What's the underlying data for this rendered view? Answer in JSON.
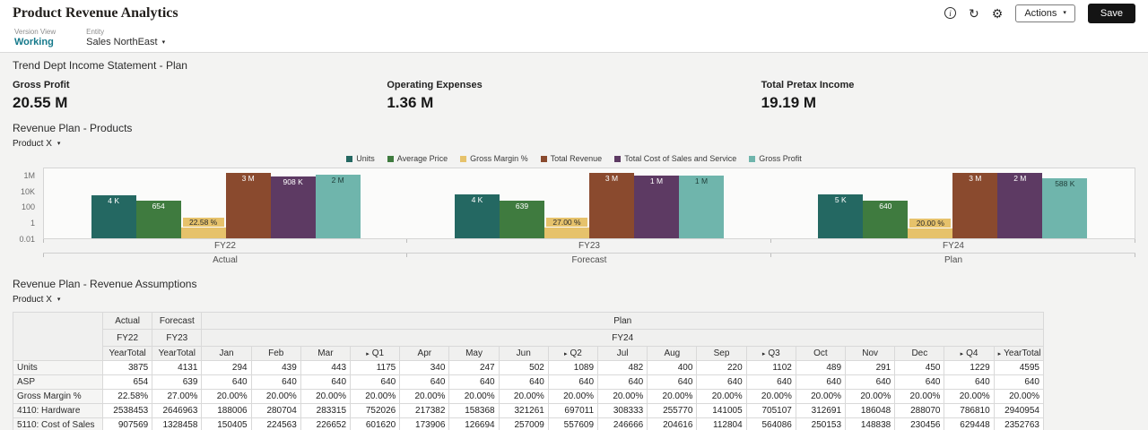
{
  "header": {
    "title": "Product Revenue Analytics",
    "actions_label": "Actions",
    "save_label": "Save",
    "icons": [
      {
        "name": "info-icon",
        "glyph": "i"
      },
      {
        "name": "refresh-icon",
        "glyph": "↻"
      },
      {
        "name": "settings-gear-icon",
        "glyph": "⚙"
      }
    ]
  },
  "glyphs": {
    "caret": "▾",
    "expand_triangle": "▸"
  },
  "context": {
    "version_label": "Version View",
    "version_value": "Working",
    "entity_label": "Entity",
    "entity_value": "Sales NorthEast"
  },
  "kpi_section": {
    "title": "Trend Dept Income Statement - Plan",
    "tiles": [
      {
        "label": "Gross Profit",
        "value": "20.55 M"
      },
      {
        "label": "Operating Expenses",
        "value": "1.36 M"
      },
      {
        "label": "Total Pretax Income",
        "value": "19.19 M"
      }
    ]
  },
  "chart_section": {
    "title": "Revenue Plan - Products",
    "filter_label": "Product X"
  },
  "chart_data": {
    "type": "bar",
    "y_scale": "log",
    "legend_position": "top",
    "y_range": [
      0.01,
      10000000
    ],
    "y_ticks": [
      {
        "label": "1M",
        "value": 1000000
      },
      {
        "label": "10K",
        "value": 10000
      },
      {
        "label": "100",
        "value": 100
      },
      {
        "label": "1",
        "value": 1
      },
      {
        "label": "0.01",
        "value": 0.01
      }
    ],
    "categories": [
      "FY22",
      "FY23",
      "FY24"
    ],
    "category_sublabels": [
      "Actual",
      "Forecast",
      "Plan"
    ],
    "series": [
      {
        "name": "Units",
        "color": "#246862",
        "values": [
          3875,
          4131,
          4595
        ],
        "labels": [
          "4 K",
          "4 K",
          "5 K"
        ]
      },
      {
        "name": "Average Price",
        "color": "#3f7b3f",
        "values": [
          654,
          639,
          640
        ],
        "labels": [
          "654",
          "639",
          "640"
        ]
      },
      {
        "name": "Gross Margin %",
        "color": "#e6c26b",
        "values": [
          0.2258,
          0.27,
          0.2
        ],
        "labels": [
          "22.58 %",
          "27.00 %",
          "20.00 %"
        ]
      },
      {
        "name": "Total Revenue",
        "color": "#8a4a2e",
        "values": [
          2538453,
          2646963,
          2940954
        ],
        "labels": [
          "3 M",
          "3 M",
          "3 M"
        ]
      },
      {
        "name": "Total Cost of Sales and Service",
        "color": "#5d3a63",
        "values": [
          907569,
          1328458,
          2352763
        ],
        "labels": [
          "908 K",
          "1 M",
          "2 M"
        ]
      },
      {
        "name": "Gross Profit",
        "color": "#6fb5ac",
        "values": [
          1630884,
          1318505,
          588191
        ],
        "labels": [
          "2 M",
          "1 M",
          "588 K"
        ]
      }
    ]
  },
  "table_section": {
    "title": "Revenue Plan - Revenue Assumptions",
    "filter_label": "Product X",
    "scenario_headers": [
      {
        "label": "Actual",
        "span": 1
      },
      {
        "label": "Forecast",
        "span": 1
      },
      {
        "label": "Plan",
        "span": 17
      }
    ],
    "year_headers": [
      {
        "label": "FY22",
        "span": 1
      },
      {
        "label": "FY23",
        "span": 1
      },
      {
        "label": "FY24",
        "span": 17
      }
    ],
    "period_headers": [
      {
        "label": "YearTotal"
      },
      {
        "label": "YearTotal"
      },
      {
        "label": "Jan"
      },
      {
        "label": "Feb"
      },
      {
        "label": "Mar"
      },
      {
        "label": "Q1",
        "expand": true
      },
      {
        "label": "Apr"
      },
      {
        "label": "May"
      },
      {
        "label": "Jun"
      },
      {
        "label": "Q2",
        "expand": true
      },
      {
        "label": "Jul"
      },
      {
        "label": "Aug"
      },
      {
        "label": "Sep"
      },
      {
        "label": "Q3",
        "expand": true
      },
      {
        "label": "Oct"
      },
      {
        "label": "Nov"
      },
      {
        "label": "Dec"
      },
      {
        "label": "Q4",
        "expand": true
      },
      {
        "label": "YearTotal",
        "expand": true
      }
    ],
    "rows": [
      {
        "name": "Units",
        "values": [
          "3875",
          "4131",
          "294",
          "439",
          "443",
          "1175",
          "340",
          "247",
          "502",
          "1089",
          "482",
          "400",
          "220",
          "1102",
          "489",
          "291",
          "450",
          "1229",
          "4595"
        ]
      },
      {
        "name": "ASP",
        "values": [
          "654",
          "639",
          "640",
          "640",
          "640",
          "640",
          "640",
          "640",
          "640",
          "640",
          "640",
          "640",
          "640",
          "640",
          "640",
          "640",
          "640",
          "640",
          "640"
        ]
      },
      {
        "name": "Gross Margin %",
        "values": [
          "22.58%",
          "27.00%",
          "20.00%",
          "20.00%",
          "20.00%",
          "20.00%",
          "20.00%",
          "20.00%",
          "20.00%",
          "20.00%",
          "20.00%",
          "20.00%",
          "20.00%",
          "20.00%",
          "20.00%",
          "20.00%",
          "20.00%",
          "20.00%",
          "20.00%"
        ]
      },
      {
        "name": "4110: Hardware",
        "values": [
          "2538453",
          "2646963",
          "188006",
          "280704",
          "283315",
          "752026",
          "217382",
          "158368",
          "321261",
          "697011",
          "308333",
          "255770",
          "141005",
          "705107",
          "312691",
          "186048",
          "288070",
          "786810",
          "2940954"
        ]
      },
      {
        "name": "5110: Cost of Sales",
        "values": [
          "907569",
          "1328458",
          "150405",
          "224563",
          "226652",
          "601620",
          "173906",
          "126694",
          "257009",
          "557609",
          "246666",
          "204616",
          "112804",
          "564086",
          "250153",
          "148838",
          "230456",
          "629448",
          "2352763"
        ]
      }
    ]
  }
}
